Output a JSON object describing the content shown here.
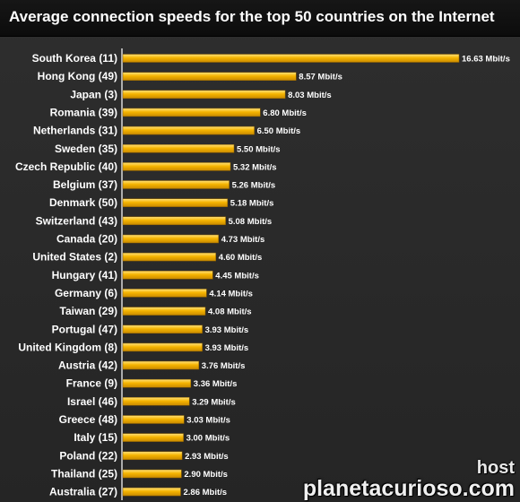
{
  "header": {
    "title": "Average connection speeds for the top 50 countries on the Internet"
  },
  "watermark": {
    "line1": "host",
    "line2": "planetacurioso.com"
  },
  "colors": {
    "bar": "#f5b400",
    "bar_highlight": "#ffe27a",
    "axis": "#d9d9d9",
    "text": "#ffffff"
  },
  "chart_data": {
    "type": "bar",
    "orientation": "horizontal",
    "title": "Average connection speeds for the top 50 countries on the Internet",
    "unit": "Mbit/s",
    "xlim": [
      0,
      17
    ],
    "grid": false,
    "categories": [
      "South Korea (11)",
      "Hong Kong (49)",
      "Japan (3)",
      "Romania (39)",
      "Netherlands (31)",
      "Sweden (35)",
      "Czech Republic (40)",
      "Belgium (37)",
      "Denmark (50)",
      "Switzerland (43)",
      "Canada (20)",
      "United States (2)",
      "Hungary (41)",
      "Germany (6)",
      "Taiwan (29)",
      "Portugal (47)",
      "United Kingdom (8)",
      "Austria (42)",
      "France (9)",
      "Israel (46)",
      "Greece (48)",
      "Italy (15)",
      "Poland (22)",
      "Thailand (25)",
      "Australia (27)"
    ],
    "values": [
      16.63,
      8.57,
      8.03,
      6.8,
      6.5,
      5.5,
      5.32,
      5.26,
      5.18,
      5.08,
      4.73,
      4.6,
      4.45,
      4.14,
      4.08,
      3.93,
      3.93,
      3.76,
      3.36,
      3.29,
      3.03,
      3.0,
      2.93,
      2.9,
      2.86
    ],
    "value_labels": [
      "16.63 Mbit/s",
      "8.57 Mbit/s",
      "8.03 Mbit/s",
      "6.80 Mbit/s",
      "6.50 Mbit/s",
      "5.50 Mbit/s",
      "5.32 Mbit/s",
      "5.26 Mbit/s",
      "5.18 Mbit/s",
      "5.08 Mbit/s",
      "4.73 Mbit/s",
      "4.60 Mbit/s",
      "4.45 Mbit/s",
      "4.14 Mbit/s",
      "4.08 Mbit/s",
      "3.93 Mbit/s",
      "3.93 Mbit/s",
      "3.76 Mbit/s",
      "3.36 Mbit/s",
      "3.29 Mbit/s",
      "3.03 Mbit/s",
      "3.00 Mbit/s",
      "2.93 Mbit/s",
      "2.90 Mbit/s",
      "2.86 Mbit/s"
    ]
  }
}
